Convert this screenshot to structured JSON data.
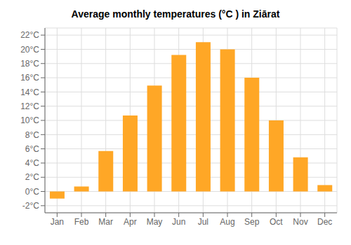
{
  "chart_data": {
    "type": "bar",
    "title": "Average monthly temperatures (°C ) in Ziārat",
    "categories": [
      "Jan",
      "Feb",
      "Mar",
      "Apr",
      "May",
      "Jun",
      "Jul",
      "Aug",
      "Sep",
      "Oct",
      "Nov",
      "Dec"
    ],
    "values": [
      -1.0,
      0.7,
      5.7,
      10.7,
      14.9,
      19.2,
      21.0,
      20.0,
      16.0,
      10.0,
      4.8,
      0.9
    ],
    "color": "#FFA726",
    "ylim": [
      -3,
      23
    ],
    "yticks": [
      {
        "value": -2,
        "label": "-2°C"
      },
      {
        "value": 0,
        "label": "0°C"
      },
      {
        "value": 2,
        "label": "2°C"
      },
      {
        "value": 4,
        "label": "4°C"
      },
      {
        "value": 6,
        "label": "6°C"
      },
      {
        "value": 8,
        "label": "8°C"
      },
      {
        "value": 10,
        "label": "10°C"
      },
      {
        "value": 12,
        "label": "12°C"
      },
      {
        "value": 14,
        "label": "14°C"
      },
      {
        "value": 16,
        "label": "16°C"
      },
      {
        "value": 18,
        "label": "18°C"
      },
      {
        "value": 20,
        "label": "20°C"
      },
      {
        "value": 22,
        "label": "22°C"
      }
    ],
    "grid": true
  }
}
